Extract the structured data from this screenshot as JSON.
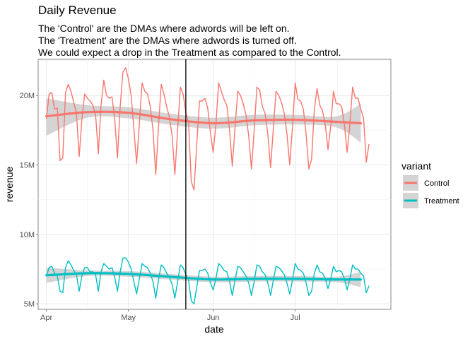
{
  "chart_data": {
    "type": "line",
    "title": "Daily Revenue",
    "subtitle": [
      "The 'Control' are the DMAs where adwords will be left on.",
      "The 'Treatment' are the DMAs where adwords is turned off.",
      "We could expect a drop in the Treatment as compared to the Control."
    ],
    "xlabel": "date",
    "ylabel": "revenue",
    "xlim": [
      "2019-03-29",
      "2019-08-05"
    ],
    "ylim": [
      4600000,
      22600000
    ],
    "x_ticks": [
      {
        "date": "2019-04-01",
        "label": "Apr"
      },
      {
        "date": "2019-05-01",
        "label": "May"
      },
      {
        "date": "2019-06-01",
        "label": "Jun"
      },
      {
        "date": "2019-07-01",
        "label": "Jul"
      }
    ],
    "y_ticks": [
      {
        "value": 5000000,
        "label": "5M"
      },
      {
        "value": 10000000,
        "label": "10M"
      },
      {
        "value": 15000000,
        "label": "15M"
      },
      {
        "value": 20000000,
        "label": "20M"
      }
    ],
    "grid": true,
    "vline": {
      "date": "2019-05-22"
    },
    "legend": {
      "title": "variant",
      "position": "right"
    },
    "start_date": "2019-04-01",
    "series": [
      {
        "name": "Control",
        "color": "#F8766D",
        "values": [
          18.3,
          20.1,
          20.2,
          19.0,
          19.1,
          15.3,
          15.5,
          20.2,
          20.8,
          20.3,
          19.5,
          18.7,
          15.6,
          18.3,
          20.1,
          19.8,
          19.6,
          19.3,
          18.6,
          15.8,
          19.3,
          21.1,
          20.0,
          19.8,
          19.9,
          18.3,
          15.5,
          19.2,
          21.7,
          22.0,
          21.2,
          20.0,
          17.6,
          15.1,
          17.9,
          20.9,
          20.3,
          20.1,
          19.2,
          17.5,
          14.3,
          17.7,
          20.8,
          20.1,
          19.2,
          18.4,
          17.1,
          14.3,
          17.5,
          20.6,
          20.1,
          18.8,
          18.0,
          13.8,
          13.2,
          16.5,
          19.6,
          19.6,
          19.8,
          19.1,
          17.3,
          15.9,
          17.9,
          20.9,
          20.3,
          19.7,
          19.3,
          17.5,
          14.9,
          17.7,
          20.3,
          20.0,
          19.4,
          18.6,
          17.1,
          14.7,
          17.5,
          20.6,
          20.4,
          19.2,
          18.7,
          17.2,
          14.8,
          17.6,
          20.3,
          20.0,
          19.5,
          18.7,
          17.2,
          15.0,
          17.7,
          20.9,
          19.7,
          19.6,
          19.0,
          17.2,
          14.7,
          15.4,
          19.0,
          20.5,
          19.3,
          18.9,
          17.9,
          16.1,
          17.8,
          20.3,
          19.4,
          19.4,
          19.2,
          17.9,
          15.9,
          17.9,
          20.6,
          19.8,
          19.8,
          19.0,
          18.4,
          15.2,
          16.5
        ]
      },
      {
        "name": "Treatment",
        "color": "#00BFC4",
        "values": [
          7.0,
          7.6,
          7.7,
          7.2,
          7.0,
          5.9,
          5.8,
          7.6,
          8.1,
          7.8,
          7.4,
          7.1,
          5.9,
          7.0,
          7.6,
          7.6,
          7.3,
          7.3,
          7.1,
          5.9,
          7.3,
          7.9,
          7.7,
          7.5,
          7.6,
          6.9,
          5.9,
          7.3,
          8.3,
          8.3,
          8.0,
          7.5,
          6.6,
          5.7,
          6.8,
          7.9,
          7.7,
          7.6,
          7.2,
          6.6,
          5.4,
          6.7,
          7.8,
          7.6,
          7.2,
          6.9,
          6.4,
          5.4,
          6.6,
          7.8,
          7.6,
          7.1,
          6.7,
          5.2,
          5.0,
          6.2,
          7.4,
          7.4,
          7.5,
          7.2,
          6.5,
          6.0,
          6.8,
          7.9,
          7.7,
          7.4,
          7.3,
          6.6,
          5.6,
          6.7,
          7.7,
          7.6,
          7.3,
          7.0,
          6.5,
          5.6,
          6.6,
          7.8,
          7.7,
          7.3,
          7.1,
          6.5,
          5.6,
          6.7,
          7.7,
          7.6,
          7.4,
          7.1,
          6.5,
          5.7,
          6.7,
          7.9,
          7.5,
          7.4,
          7.2,
          6.5,
          5.6,
          5.9,
          7.2,
          7.8,
          7.3,
          7.2,
          6.8,
          6.1,
          6.8,
          7.7,
          7.3,
          7.4,
          7.3,
          6.8,
          6.0,
          6.8,
          7.8,
          7.5,
          7.5,
          7.2,
          7.0,
          5.8,
          6.3
        ]
      }
    ],
    "smooth": [
      {
        "name": "Control",
        "points": [
          {
            "date": "2019-04-01",
            "fit": 18.5,
            "lo": 17.1,
            "hi": 19.8
          },
          {
            "date": "2019-04-16",
            "fit": 18.8,
            "lo": 18.4,
            "hi": 19.3
          },
          {
            "date": "2019-05-01",
            "fit": 18.75,
            "lo": 18.35,
            "hi": 19.15
          },
          {
            "date": "2019-05-16",
            "fit": 18.3,
            "lo": 17.9,
            "hi": 18.7
          },
          {
            "date": "2019-06-01",
            "fit": 18.0,
            "lo": 17.6,
            "hi": 18.4
          },
          {
            "date": "2019-06-16",
            "fit": 18.2,
            "lo": 17.85,
            "hi": 18.6
          },
          {
            "date": "2019-07-01",
            "fit": 18.25,
            "lo": 17.9,
            "hi": 18.6
          },
          {
            "date": "2019-07-16",
            "fit": 18.1,
            "lo": 17.7,
            "hi": 18.5
          },
          {
            "date": "2019-07-25",
            "fit": 18.0,
            "lo": 16.6,
            "hi": 19.4
          }
        ]
      },
      {
        "name": "Treatment",
        "points": [
          {
            "date": "2019-04-01",
            "fit": 7.05,
            "lo": 6.5,
            "hi": 7.6
          },
          {
            "date": "2019-04-16",
            "fit": 7.2,
            "lo": 7.0,
            "hi": 7.4
          },
          {
            "date": "2019-05-01",
            "fit": 7.15,
            "lo": 6.95,
            "hi": 7.35
          },
          {
            "date": "2019-05-16",
            "fit": 6.95,
            "lo": 6.75,
            "hi": 7.15
          },
          {
            "date": "2019-06-01",
            "fit": 6.75,
            "lo": 6.55,
            "hi": 6.95
          },
          {
            "date": "2019-06-16",
            "fit": 6.8,
            "lo": 6.6,
            "hi": 7.0
          },
          {
            "date": "2019-07-01",
            "fit": 6.8,
            "lo": 6.6,
            "hi": 7.0
          },
          {
            "date": "2019-07-16",
            "fit": 6.75,
            "lo": 6.55,
            "hi": 6.95
          },
          {
            "date": "2019-07-25",
            "fit": 6.75,
            "lo": 6.2,
            "hi": 7.3
          }
        ]
      }
    ],
    "value_unit_millions": true,
    "ribbon_color": "#bdbdbd"
  }
}
